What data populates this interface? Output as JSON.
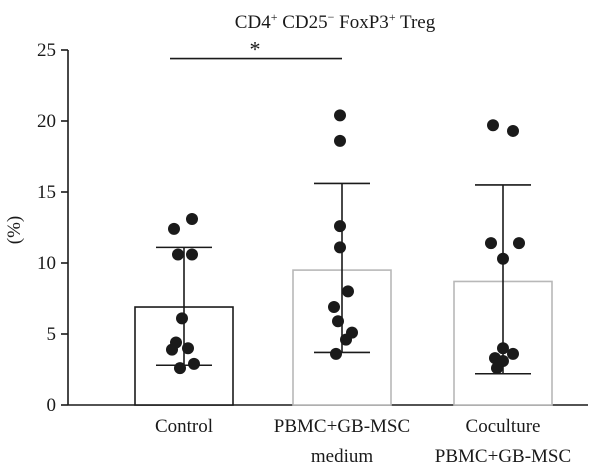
{
  "chart_data": {
    "type": "bar",
    "title": {
      "base1": "CD4",
      "sup1": "+",
      "base2": " CD25",
      "sup2": "−",
      "base3": " FoxP3",
      "sup3": "+",
      "base4": " Treg"
    },
    "ylabel": "(%)",
    "ylim": [
      0,
      25
    ],
    "yticks": [
      0,
      5,
      10,
      15,
      20,
      25
    ],
    "grid": false,
    "categories": [
      {
        "line1": "Control",
        "line2": ""
      },
      {
        "line1": "PBMC+GB-MSC",
        "line2": "medium"
      },
      {
        "line1": "Coculture",
        "line2": "PBMC+GB-MSC"
      }
    ],
    "bars": [
      {
        "mean": 6.9,
        "sd_low": 2.8,
        "sd_high": 11.1,
        "edge_color": "#1a1a1a",
        "points": [
          13.1,
          12.4,
          10.6,
          10.6,
          6.1,
          4.4,
          3.9,
          4.0,
          2.9,
          2.6
        ]
      },
      {
        "mean": 9.5,
        "sd_low": 3.7,
        "sd_high": 15.6,
        "edge_color": "#b8b8b8",
        "points": [
          20.4,
          18.6,
          12.6,
          11.1,
          8.0,
          6.9,
          5.9,
          5.1,
          4.6,
          3.6
        ]
      },
      {
        "mean": 8.7,
        "sd_low": 2.2,
        "sd_high": 15.5,
        "edge_color": "#b8b8b8",
        "points": [
          19.7,
          19.3,
          11.4,
          11.4,
          10.3,
          4.0,
          3.6,
          3.3,
          3.1,
          2.6
        ]
      }
    ],
    "significance": {
      "from": 0,
      "to": 1,
      "label": "*",
      "y": 24.4
    }
  },
  "colors": {
    "axis": "#1a1a1a",
    "dot": "#1a1a1a",
    "bar_fill": "#ffffff"
  }
}
